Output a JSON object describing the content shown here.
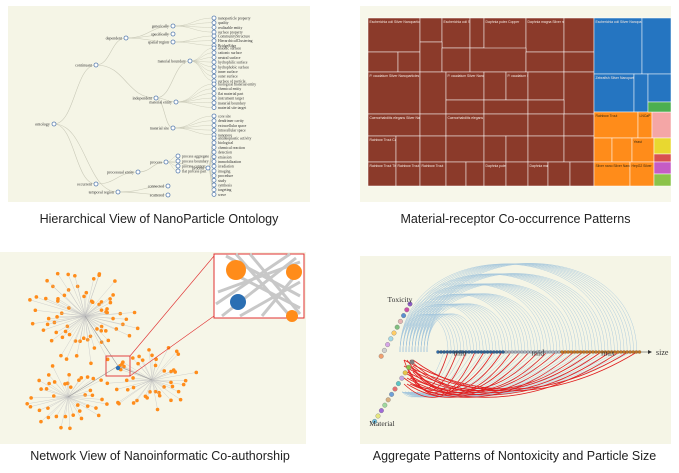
{
  "panels": {
    "ontology": {
      "caption": "Hierarchical View of NanoParticle Ontology",
      "root": "ontology",
      "level1": [
        "continuant",
        "occurrent",
        "temporal region"
      ],
      "level2": [
        "dependent",
        "independent",
        "processual entity",
        "process",
        "connected",
        "scattered"
      ],
      "level3": [
        "generically",
        "specifically",
        "spatial region",
        "material boundary",
        "material entity",
        "material site",
        "process"
      ],
      "leaves": [
        "nanoparticle property",
        "quality",
        "realizable entity",
        "surface property",
        "CommunityStructure",
        "HierarchicalClustering",
        "BridgeEdge",
        "anionic surface",
        "cationic surface",
        "neutral surface",
        "hydrophilic surface",
        "hydrophobic surface",
        "inner surface",
        "outer surface",
        "surface of particle",
        "biological material entity",
        "chemical entity",
        "flat material part",
        "instrument target",
        "material boundary",
        "material site target",
        "core site",
        "dendrimer cavity",
        "extracellular space",
        "intracellular space",
        "nanopore",
        "antineoplastic activity",
        "biological",
        "chemical reaction",
        "detection",
        "emission",
        "immobilization",
        "irradiation",
        "imaging",
        "procedure",
        "study",
        "synthesis",
        "targeting",
        "wave",
        "process aggregate",
        "process boundary",
        "process context",
        "flat process part"
      ]
    },
    "treemap": {
      "caption": "Material-receptor Co-occurrence Patterns",
      "labels": [
        "Escherichia coli Silver Nanoparticles",
        "Daphnia magna Silver nanoparticle",
        "Escherichia coli Silver Nanoparticle",
        "P. caudatum Silver Nanoparticles",
        "Rainbow Trout",
        "Rainbow Trout Silver",
        "Daphnia pulex Copper",
        "Daphnia magna Copper",
        "Daphnia pulex Zinc Oxide",
        "Zebrafish Silver Nanoparticles",
        "LNCaP",
        "Silver nano Silver Nanoparticles",
        "Yeast",
        "Caenorhabditis elegans Silver Nanoparticles",
        "P. caudatum Silver Nanoparticle",
        "Rainbow Trout Copper",
        "Rainbow Trout TiO2 NP Titanium dioxide",
        "Escherichia coli Silver",
        "Daphnia magna",
        "HepG2 Silver",
        "Rainbow Trout Silver",
        "Rainbow Trout Cadmium",
        "Yeast Zinc"
      ]
    },
    "network": {
      "caption": "Network View of Nanoinformatic Co-authorship"
    },
    "arcs": {
      "caption": "Aggregate Patterns of Nontoxicity and Particle Size",
      "top_label": "Toxicity",
      "bottom_label": "Material",
      "axis_labels": [
        "min",
        "mid",
        "max",
        "size"
      ]
    }
  },
  "colors": {
    "panel_bg": "#f5f5e6",
    "treemap_brown": "#8b3a2a",
    "treemap_blue": "#2575c1",
    "treemap_orange": "#ff8c1a",
    "network_orange": "#ff8c1a",
    "network_blue": "#2b6fb3",
    "arc_blue": "#a6c7dd",
    "arc_red": "#e02020",
    "accent_red": "#e03030"
  }
}
